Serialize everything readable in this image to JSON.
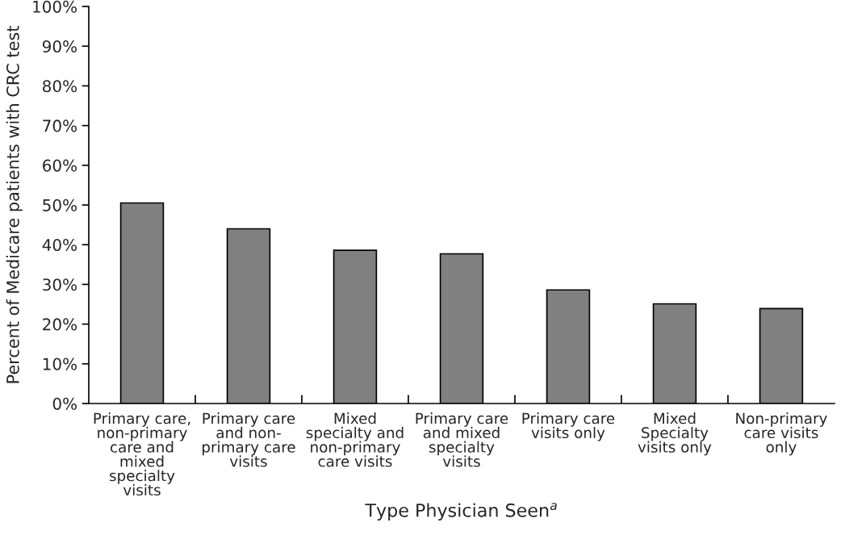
{
  "chart_data": {
    "type": "bar",
    "xlabel": "Type Physician Seen$^{a}$",
    "ylabel": "Percent of Medicare patients with CRC test",
    "categories": [
      "Primary care,\nnon-primary\ncare and\nmixed\nspecialty\nvisits",
      "Primary care\nand non-\nprimary care\nvisits",
      "Mixed\nspecialty and\nnon-primary\ncare visits",
      "Primary care\nand mixed\nspecialty\nvisits",
      "Primary care\nvisits only",
      "Mixed\nSpecialty\nvisits only",
      "Non-primary\ncare visits\nonly"
    ],
    "values": [
      50.5,
      44.0,
      38.6,
      37.7,
      28.6,
      25.1,
      23.9
    ],
    "color": "#808080",
    "ylim": [
      0,
      100
    ],
    "yticks": [
      {
        "value": 0,
        "label": "0%"
      },
      {
        "value": 10,
        "label": "10%"
      },
      {
        "value": 20,
        "label": "20%"
      },
      {
        "value": 30,
        "label": "30%"
      },
      {
        "value": 40,
        "label": "40%"
      },
      {
        "value": 50,
        "label": "50%"
      },
      {
        "value": 60,
        "label": "60%"
      },
      {
        "value": 70,
        "label": "70%"
      },
      {
        "value": 80,
        "label": "80%"
      },
      {
        "value": 90,
        "label": "90%"
      },
      {
        "value": 100,
        "label": "100%"
      }
    ],
    "grid": false,
    "legend": false
  }
}
